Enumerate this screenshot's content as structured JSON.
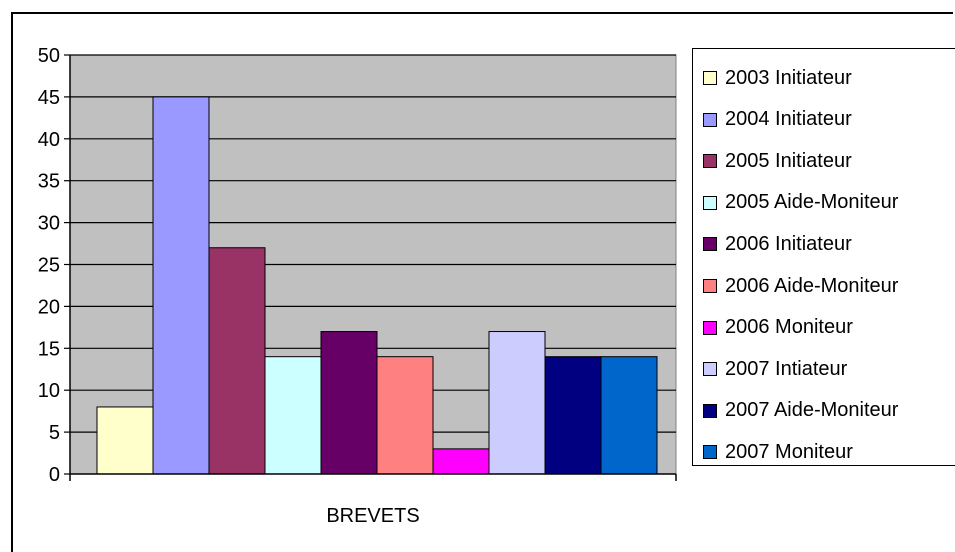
{
  "chart_data": {
    "type": "bar",
    "categories": [
      "BREVETS"
    ],
    "series": [
      {
        "name": "2003 Initiateur",
        "values": [
          8
        ],
        "color": "#FFFFCC"
      },
      {
        "name": "2004 Initiateur",
        "values": [
          45
        ],
        "color": "#9999FF"
      },
      {
        "name": "2005 Initiateur",
        "values": [
          27
        ],
        "color": "#993366"
      },
      {
        "name": "2005 Aide-Moniteur",
        "values": [
          14
        ],
        "color": "#CCFFFF"
      },
      {
        "name": "2006 Initiateur",
        "values": [
          17
        ],
        "color": "#660066"
      },
      {
        "name": "2006 Aide-Moniteur",
        "values": [
          14
        ],
        "color": "#FF8080"
      },
      {
        "name": "2006 Moniteur",
        "values": [
          3
        ],
        "color": "#FF00FF"
      },
      {
        "name": "2007 Intiateur",
        "values": [
          17
        ],
        "color": "#CCCCFF"
      },
      {
        "name": "2007 Aide-Moniteur",
        "values": [
          14
        ],
        "color": "#000080"
      },
      {
        "name": "2007 Moniteur",
        "values": [
          14
        ],
        "color": "#0066CC"
      }
    ],
    "yticks": [
      "0",
      "5",
      "10",
      "15",
      "20",
      "25",
      "30",
      "35",
      "40",
      "45",
      "50"
    ],
    "ylim": [
      0,
      50
    ],
    "grid": true,
    "legend_position": "right",
    "plot_background": "#C0C0C0"
  }
}
